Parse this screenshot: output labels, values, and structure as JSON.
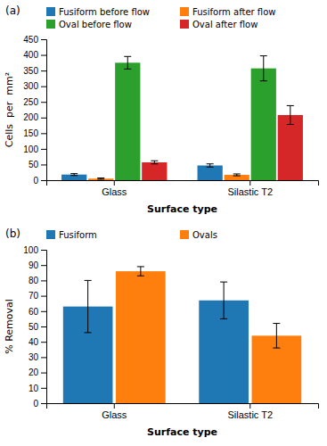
{
  "chart_data": [
    {
      "type": "bar",
      "title": "(a)",
      "xlabel": "Surface type",
      "ylabel": "Cells  per  mm²",
      "categories": [
        "Glass",
        "Silastic T2"
      ],
      "series": [
        {
          "name": "Fusiform before flow",
          "values": [
            18,
            47
          ],
          "errors": [
            3,
            5
          ]
        },
        {
          "name": "Fusiform after flow",
          "values": [
            5,
            17
          ],
          "errors": [
            2,
            3
          ]
        },
        {
          "name": "Oval before flow",
          "values": [
            375,
            357
          ],
          "errors": [
            20,
            40
          ]
        },
        {
          "name": "Oval after flow",
          "values": [
            57,
            208
          ],
          "errors": [
            5,
            30
          ]
        }
      ],
      "ylim": [
        0,
        450
      ],
      "yticks": [
        0,
        50,
        100,
        150,
        200,
        250,
        300,
        350,
        400,
        450
      ],
      "grid": false,
      "legend": "top"
    },
    {
      "type": "bar",
      "title": "(b)",
      "xlabel": "Surface type",
      "ylabel": "% Removal",
      "categories": [
        "Glass",
        "Silastic T2"
      ],
      "series": [
        {
          "name": "Fusiform",
          "values": [
            63,
            67
          ],
          "errors": [
            17,
            12
          ]
        },
        {
          "name": "Ovals",
          "values": [
            86,
            44
          ],
          "errors": [
            3,
            8
          ]
        }
      ],
      "ylim": [
        0,
        100
      ],
      "yticks": [
        0,
        10,
        20,
        30,
        40,
        50,
        60,
        70,
        80,
        90,
        100
      ],
      "grid": false,
      "legend": "top"
    }
  ]
}
